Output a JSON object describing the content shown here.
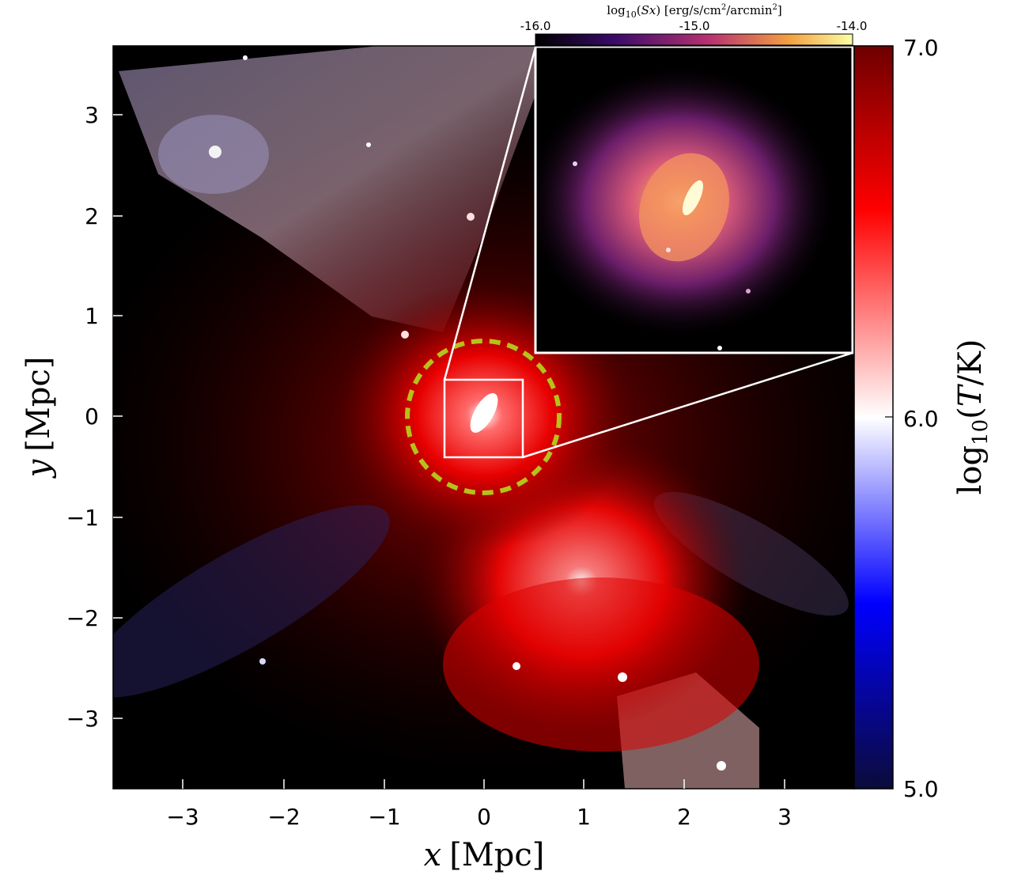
{
  "main_axes": {
    "xlabel_var": "x",
    "xlabel_unit": "[Mpc]",
    "ylabel_var": "y",
    "ylabel_unit": "[Mpc]",
    "x_ticks": [
      "−3",
      "−2",
      "−1",
      "0",
      "1",
      "2",
      "3"
    ],
    "y_ticks": [
      "3",
      "2",
      "1",
      "0",
      "−1",
      "−2",
      "−3"
    ]
  },
  "temperature_colorbar": {
    "label": "log10(T/K)",
    "ticks": [
      "7.0",
      "6.0",
      "5.0"
    ],
    "colormap": [
      "#0b0b3a",
      "#0000ff",
      "#ffffff",
      "#ff0000",
      "#6e0000"
    ]
  },
  "sx_colorbar": {
    "label": "log10(Sx) [erg/s/cm2/arcmin2]",
    "ticks": [
      "-16.0",
      "-15.0",
      "-14.0"
    ],
    "colormap": [
      "#000000",
      "#3a0a6a",
      "#b83270",
      "#f4a040",
      "#fcffa4"
    ]
  },
  "annotations": {
    "aperture_circle_color": "#b5c21a",
    "zoom_box_color": "#ffffff"
  }
}
